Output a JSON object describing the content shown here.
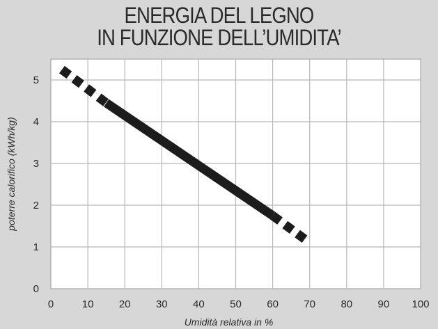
{
  "chart_data": {
    "type": "line",
    "title_line1": "ENERGIA DEL LEGNO",
    "title_line2": "IN FUNZIONE DELL’UMIDITA’",
    "xlabel": "Umidità relativa in %",
    "ylabel": "poterre calorifico (kWh/kg)",
    "xlim": [
      0,
      100
    ],
    "ylim": [
      0,
      5.5
    ],
    "xticks": [
      0,
      10,
      20,
      30,
      40,
      50,
      60,
      70,
      80,
      90,
      100
    ],
    "yticks": [
      0,
      1,
      2,
      3,
      4,
      5
    ],
    "grid": true,
    "series": [
      {
        "style": "solid",
        "x": [
          15,
          60
        ],
        "y": [
          4.45,
          1.75
        ]
      },
      {
        "style": "dashed",
        "x": [
          3,
          15
        ],
        "y": [
          5.25,
          4.45
        ]
      },
      {
        "style": "dashed",
        "x": [
          60,
          70
        ],
        "y": [
          1.75,
          1.1
        ]
      }
    ]
  },
  "colors": {
    "background": "#d7d7d7",
    "plot_area": "#ffffff",
    "grid": "#b8b8b8",
    "line": "#1c1c1c",
    "text": "#2a2a2a"
  }
}
